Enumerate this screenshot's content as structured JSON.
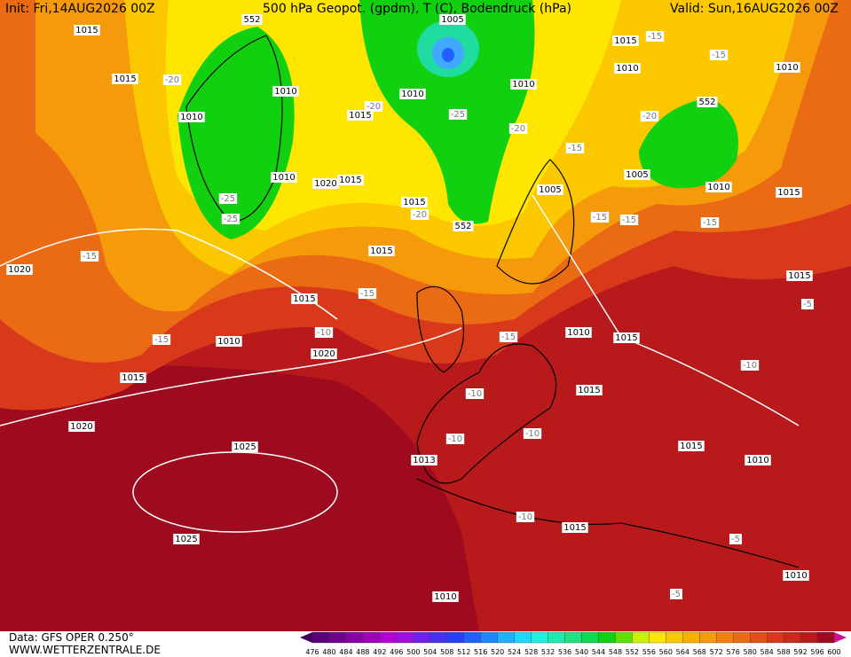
{
  "header": {
    "init": "Init: Fri,14AUG2026 00Z",
    "title": "500 hPa Geopot. (gpdm), T (C), Bodendruck (hPa)",
    "valid": "Valid: Sun,16AUG2026 00Z"
  },
  "map": {
    "pressure_labels": [
      1015,
      1015,
      1010,
      1010,
      1015,
      1010,
      1005,
      1010,
      1015,
      1010,
      1010,
      552,
      552,
      1010,
      1020,
      1015,
      1015,
      1005,
      1005,
      1010,
      1015,
      552,
      1015,
      1020,
      1015,
      1010,
      1020,
      1015,
      1010,
      1015,
      1015,
      1015,
      1020,
      1025,
      1013,
      1015,
      1010,
      1025,
      1015,
      1010,
      1010
    ],
    "temperature_labels": [
      -15,
      -15,
      -20,
      -20,
      -25,
      -20,
      -20,
      -15,
      -25,
      -25,
      -20,
      -15,
      -15,
      -15,
      -15,
      -15,
      -10,
      -15,
      -15,
      -10,
      -10,
      -10,
      -10,
      -5,
      -10,
      -5,
      -5
    ]
  },
  "footer": {
    "source": "Data: GFS OPER 0.250°",
    "website": "WWW.WETTERZENTRALE.DE"
  },
  "colorbar": {
    "labels": [
      476,
      480,
      484,
      488,
      492,
      496,
      500,
      504,
      508,
      512,
      516,
      520,
      524,
      528,
      532,
      536,
      540,
      544,
      548,
      552,
      556,
      560,
      564,
      568,
      572,
      576,
      580,
      584,
      588,
      592,
      596,
      600
    ]
  }
}
